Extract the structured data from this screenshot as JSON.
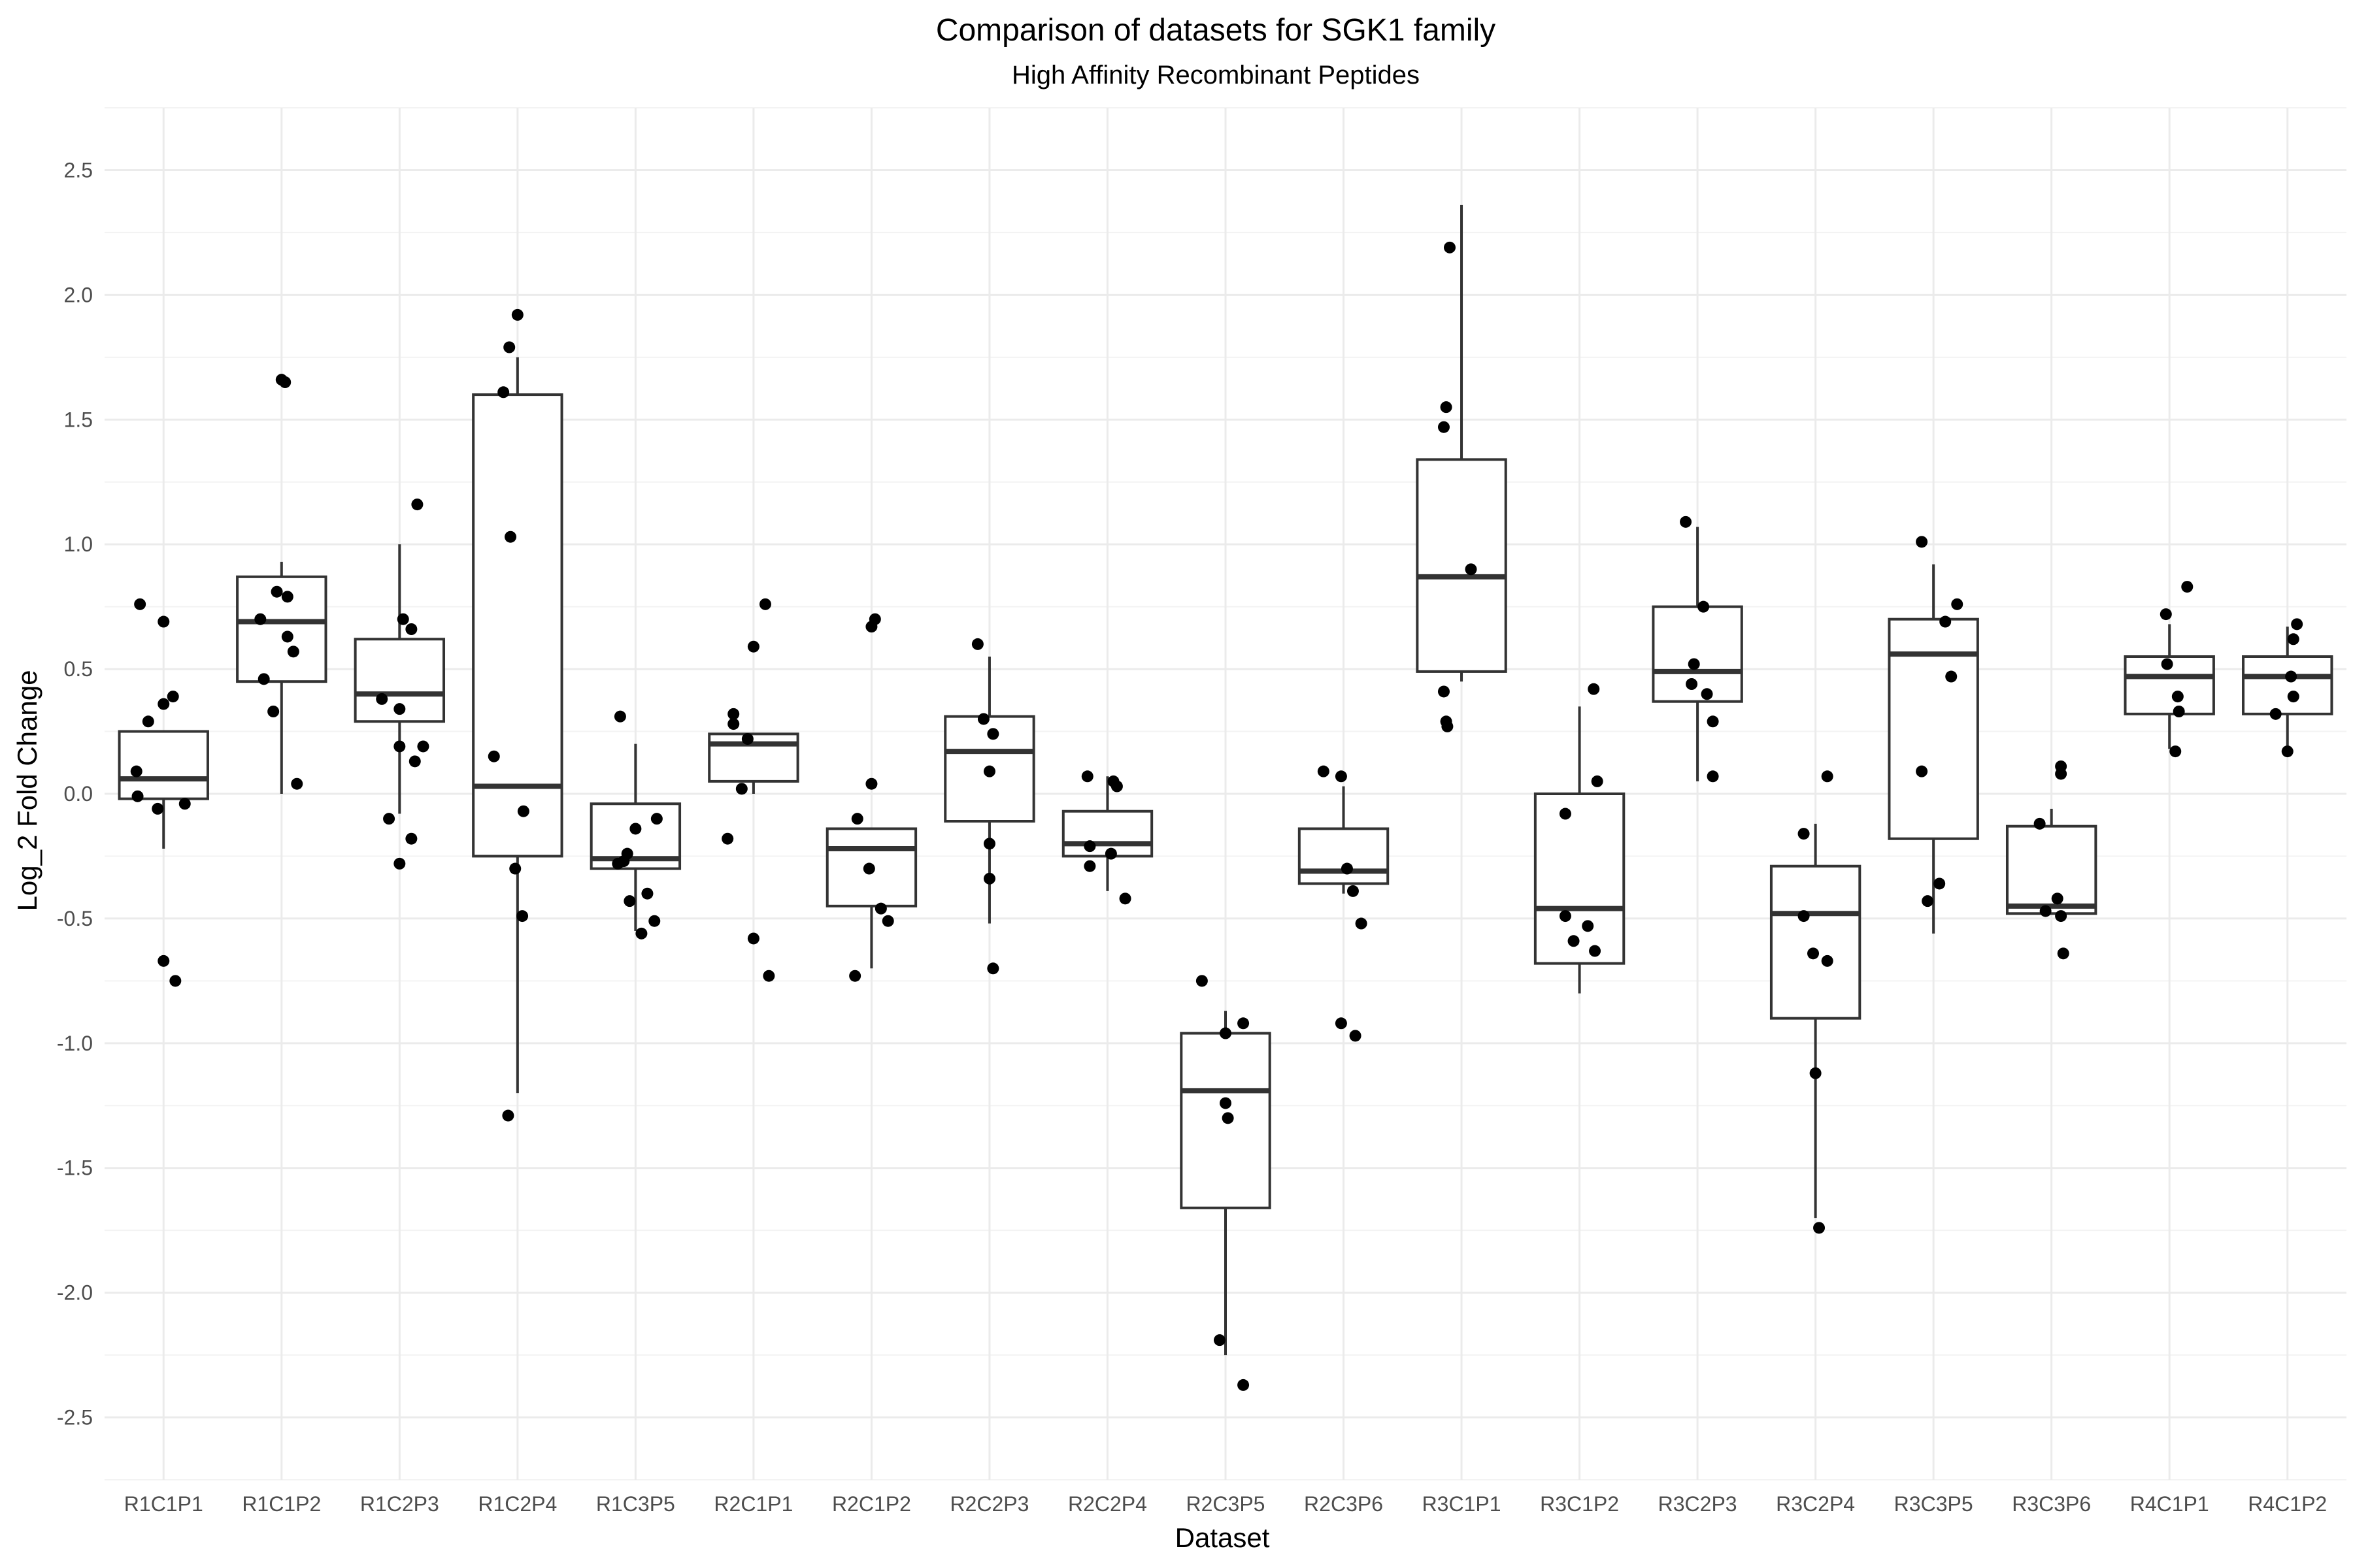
{
  "chart_data": {
    "type": "box",
    "title": "Comparison of datasets for SGK1 family",
    "subtitle": "High Affinity Recombinant Peptides",
    "xlabel": "Dataset",
    "ylabel": "Log_2 Fold Change",
    "ylim": [
      -2.75,
      2.75
    ],
    "yticks": [
      2.5,
      2.0,
      1.5,
      1.0,
      0.5,
      0.0,
      -0.5,
      -1.0,
      -1.5,
      -2.0,
      -2.5
    ],
    "ytick_labels": [
      "2.5",
      "2.0",
      "1.5",
      "1.0",
      "0.5",
      "0.0",
      "-0.5",
      "-1.0",
      "-1.5",
      "-2.0",
      "-2.5"
    ],
    "grid": true,
    "categories": [
      "R1C1P1",
      "R1C1P2",
      "R1C2P3",
      "R1C2P4",
      "R1C3P5",
      "R2C1P1",
      "R2C1P2",
      "R2C2P3",
      "R2C2P4",
      "R2C3P5",
      "R2C3P6",
      "R3C1P1",
      "R3C1P2",
      "R3C2P3",
      "R3C2P4",
      "R3C3P5",
      "R3C3P6",
      "R4C1P1",
      "R4C1P2"
    ],
    "boxes": [
      {
        "q1": -0.02,
        "median": 0.06,
        "q3": 0.25,
        "whisker_low": -0.22,
        "whisker_high": 0.25,
        "points": [
          [
            -0.2,
            0.76
          ],
          [
            0.0,
            0.69
          ],
          [
            -0.13,
            0.29
          ],
          [
            0.0,
            0.36
          ],
          [
            0.08,
            0.39
          ],
          [
            -0.23,
            0.09
          ],
          [
            -0.22,
            -0.01
          ],
          [
            -0.05,
            -0.06
          ],
          [
            0.18,
            -0.04
          ],
          [
            0.0,
            -0.67
          ],
          [
            0.1,
            -0.75
          ]
        ]
      },
      {
        "q1": 0.45,
        "median": 0.69,
        "q3": 0.87,
        "whisker_low": 0.0,
        "whisker_high": 0.93,
        "points": [
          [
            0.0,
            1.66
          ],
          [
            0.03,
            1.65
          ],
          [
            -0.04,
            0.81
          ],
          [
            0.05,
            0.79
          ],
          [
            -0.18,
            0.7
          ],
          [
            0.05,
            0.63
          ],
          [
            0.1,
            0.57
          ],
          [
            -0.15,
            0.46
          ],
          [
            -0.07,
            0.33
          ],
          [
            0.13,
            0.04
          ]
        ]
      },
      {
        "q1": 0.29,
        "median": 0.4,
        "q3": 0.62,
        "whisker_low": -0.08,
        "whisker_high": 1.0,
        "points": [
          [
            0.15,
            1.16
          ],
          [
            0.03,
            0.7
          ],
          [
            0.1,
            0.66
          ],
          [
            -0.15,
            0.38
          ],
          [
            0.0,
            0.34
          ],
          [
            0.0,
            0.19
          ],
          [
            0.2,
            0.19
          ],
          [
            0.13,
            0.13
          ],
          [
            -0.09,
            -0.1
          ],
          [
            0.1,
            -0.18
          ],
          [
            0.0,
            -0.28
          ]
        ]
      },
      {
        "q1": -0.25,
        "median": 0.03,
        "q3": 1.6,
        "whisker_low": -1.2,
        "whisker_high": 1.75,
        "points": [
          [
            0.0,
            1.92
          ],
          [
            -0.07,
            1.79
          ],
          [
            -0.12,
            1.61
          ],
          [
            -0.06,
            1.03
          ],
          [
            -0.2,
            0.15
          ],
          [
            0.05,
            -0.07
          ],
          [
            -0.02,
            -0.3
          ],
          [
            0.04,
            -0.49
          ],
          [
            -0.08,
            -1.29
          ]
        ]
      },
      {
        "q1": -0.3,
        "median": -0.26,
        "q3": -0.04,
        "whisker_low": -0.55,
        "whisker_high": 0.2,
        "points": [
          [
            -0.13,
            0.31
          ],
          [
            0.18,
            -0.1
          ],
          [
            0.0,
            -0.14
          ],
          [
            -0.07,
            -0.24
          ],
          [
            -0.1,
            -0.27
          ],
          [
            -0.15,
            -0.28
          ],
          [
            0.1,
            -0.4
          ],
          [
            -0.05,
            -0.43
          ],
          [
            0.16,
            -0.51
          ],
          [
            0.05,
            -0.56
          ]
        ]
      },
      {
        "q1": 0.05,
        "median": 0.2,
        "q3": 0.24,
        "whisker_low": 0.0,
        "whisker_high": 0.24,
        "points": [
          [
            0.1,
            0.76
          ],
          [
            0.0,
            0.59
          ],
          [
            -0.17,
            0.32
          ],
          [
            -0.17,
            0.28
          ],
          [
            -0.05,
            0.22
          ],
          [
            -0.1,
            0.02
          ],
          [
            -0.22,
            -0.18
          ],
          [
            0.0,
            -0.58
          ],
          [
            0.13,
            -0.73
          ]
        ]
      },
      {
        "q1": -0.45,
        "median": -0.22,
        "q3": -0.14,
        "whisker_low": -0.7,
        "whisker_high": -0.14,
        "points": [
          [
            0.03,
            0.7
          ],
          [
            0.0,
            0.67
          ],
          [
            0.0,
            0.04
          ],
          [
            -0.12,
            -0.1
          ],
          [
            -0.02,
            -0.3
          ],
          [
            0.08,
            -0.46
          ],
          [
            0.14,
            -0.51
          ],
          [
            -0.14,
            -0.73
          ]
        ]
      },
      {
        "q1": -0.11,
        "median": 0.17,
        "q3": 0.31,
        "whisker_low": -0.52,
        "whisker_high": 0.55,
        "points": [
          [
            -0.1,
            0.6
          ],
          [
            -0.05,
            0.3
          ],
          [
            0.03,
            0.24
          ],
          [
            0.0,
            0.09
          ],
          [
            0.0,
            -0.2
          ],
          [
            0.0,
            -0.34
          ],
          [
            0.03,
            -0.7
          ]
        ]
      },
      {
        "q1": -0.25,
        "median": -0.2,
        "q3": -0.07,
        "whisker_low": -0.39,
        "whisker_high": 0.07,
        "points": [
          [
            -0.17,
            0.07
          ],
          [
            0.05,
            0.05
          ],
          [
            0.08,
            0.03
          ],
          [
            -0.15,
            -0.21
          ],
          [
            0.03,
            -0.24
          ],
          [
            -0.15,
            -0.29
          ],
          [
            0.15,
            -0.42
          ]
        ]
      },
      {
        "q1": -1.66,
        "median": -1.19,
        "q3": -0.96,
        "whisker_low": -2.25,
        "whisker_high": -0.87,
        "points": [
          [
            -0.2,
            -0.75
          ],
          [
            0.15,
            -0.92
          ],
          [
            0.0,
            -0.96
          ],
          [
            0.0,
            -1.24
          ],
          [
            0.02,
            -1.3
          ],
          [
            -0.05,
            -2.19
          ],
          [
            0.15,
            -2.37
          ]
        ]
      },
      {
        "q1": -0.36,
        "median": -0.31,
        "q3": -0.14,
        "whisker_low": -0.4,
        "whisker_high": 0.03,
        "points": [
          [
            -0.17,
            0.09
          ],
          [
            -0.02,
            0.07
          ],
          [
            0.03,
            -0.3
          ],
          [
            0.08,
            -0.39
          ],
          [
            0.15,
            -0.52
          ],
          [
            -0.02,
            -0.92
          ],
          [
            0.1,
            -0.97
          ]
        ]
      },
      {
        "q1": 0.49,
        "median": 0.87,
        "q3": 1.34,
        "whisker_low": 0.45,
        "whisker_high": 2.36,
        "points": [
          [
            -0.1,
            2.19
          ],
          [
            -0.13,
            1.55
          ],
          [
            -0.15,
            1.47
          ],
          [
            0.08,
            0.9
          ],
          [
            -0.15,
            0.41
          ],
          [
            -0.13,
            0.29
          ],
          [
            -0.12,
            0.27
          ]
        ]
      },
      {
        "q1": -0.68,
        "median": -0.46,
        "q3": 0.0,
        "whisker_low": -0.8,
        "whisker_high": 0.35,
        "points": [
          [
            0.12,
            0.42
          ],
          [
            0.15,
            0.05
          ],
          [
            -0.12,
            -0.08
          ],
          [
            -0.12,
            -0.49
          ],
          [
            0.07,
            -0.53
          ],
          [
            -0.05,
            -0.59
          ],
          [
            0.13,
            -0.63
          ]
        ]
      },
      {
        "q1": 0.37,
        "median": 0.49,
        "q3": 0.75,
        "whisker_low": 0.05,
        "whisker_high": 1.07,
        "points": [
          [
            -0.1,
            1.09
          ],
          [
            0.05,
            0.75
          ],
          [
            -0.03,
            0.52
          ],
          [
            -0.05,
            0.44
          ],
          [
            0.08,
            0.4
          ],
          [
            0.13,
            0.29
          ],
          [
            0.13,
            0.07
          ]
        ]
      },
      {
        "q1": -0.9,
        "median": -0.48,
        "q3": -0.29,
        "whisker_low": -1.7,
        "whisker_high": -0.12,
        "points": [
          [
            0.1,
            0.07
          ],
          [
            -0.1,
            -0.16
          ],
          [
            -0.1,
            -0.49
          ],
          [
            -0.02,
            -0.64
          ],
          [
            0.1,
            -0.67
          ],
          [
            0.0,
            -1.12
          ],
          [
            0.03,
            -1.74
          ]
        ]
      },
      {
        "q1": -0.18,
        "median": 0.56,
        "q3": 0.7,
        "whisker_low": -0.56,
        "whisker_high": 0.92,
        "points": [
          [
            -0.1,
            1.01
          ],
          [
            0.2,
            0.76
          ],
          [
            0.1,
            0.69
          ],
          [
            0.15,
            0.47
          ],
          [
            -0.1,
            0.09
          ],
          [
            0.05,
            -0.36
          ],
          [
            -0.05,
            -0.43
          ]
        ]
      },
      {
        "q1": -0.48,
        "median": -0.45,
        "q3": -0.13,
        "whisker_low": -0.48,
        "whisker_high": -0.06,
        "points": [
          [
            0.08,
            0.11
          ],
          [
            0.08,
            0.08
          ],
          [
            -0.1,
            -0.12
          ],
          [
            0.05,
            -0.42
          ],
          [
            -0.05,
            -0.47
          ],
          [
            0.08,
            -0.49
          ],
          [
            0.1,
            -0.64
          ]
        ]
      },
      {
        "q1": 0.32,
        "median": 0.47,
        "q3": 0.55,
        "whisker_low": 0.18,
        "whisker_high": 0.68,
        "points": [
          [
            0.15,
            0.83
          ],
          [
            -0.03,
            0.72
          ],
          [
            -0.02,
            0.52
          ],
          [
            0.07,
            0.39
          ],
          [
            0.08,
            0.33
          ],
          [
            0.05,
            0.17
          ]
        ]
      },
      {
        "q1": 0.32,
        "median": 0.47,
        "q3": 0.55,
        "whisker_low": 0.18,
        "whisker_high": 0.67,
        "points": [
          [
            0.08,
            0.68
          ],
          [
            0.05,
            0.62
          ],
          [
            0.03,
            0.47
          ],
          [
            0.05,
            0.39
          ],
          [
            -0.1,
            0.32
          ],
          [
            0.0,
            0.17
          ]
        ]
      }
    ]
  }
}
